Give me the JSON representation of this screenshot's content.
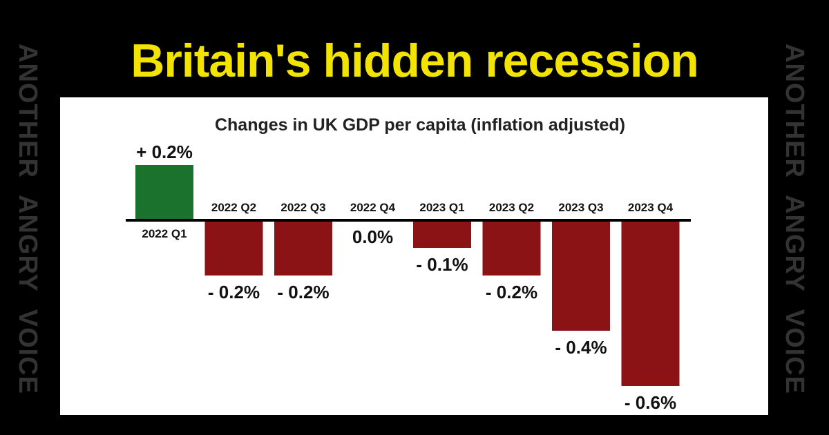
{
  "headline": "Britain's hidden recession",
  "watermark": "ANOTHER ANGRY VOICE",
  "colors": {
    "background": "#000000",
    "headline": "#f2e400",
    "watermark": "#333333",
    "positive": "#1a722d",
    "negative": "#8b1316",
    "axis": "#000000"
  },
  "chart_data": {
    "type": "bar",
    "title": "Changes in UK GDP per capita (inflation adjusted)",
    "xlabel": "",
    "ylabel": "",
    "categories": [
      "2022 Q1",
      "2022 Q2",
      "2022 Q3",
      "2022 Q4",
      "2023 Q1",
      "2023 Q2",
      "2023 Q3",
      "2023 Q4"
    ],
    "values": [
      0.2,
      -0.2,
      -0.2,
      0.0,
      -0.1,
      -0.2,
      -0.4,
      -0.6
    ],
    "value_labels": [
      "+ 0.2%",
      "- 0.2%",
      "- 0.2%",
      "0.0%",
      "- 0.1%",
      "- 0.2%",
      "- 0.4%",
      "- 0.6%"
    ],
    "ylim": [
      -0.6,
      0.2
    ],
    "grid": false,
    "legend": "none"
  }
}
